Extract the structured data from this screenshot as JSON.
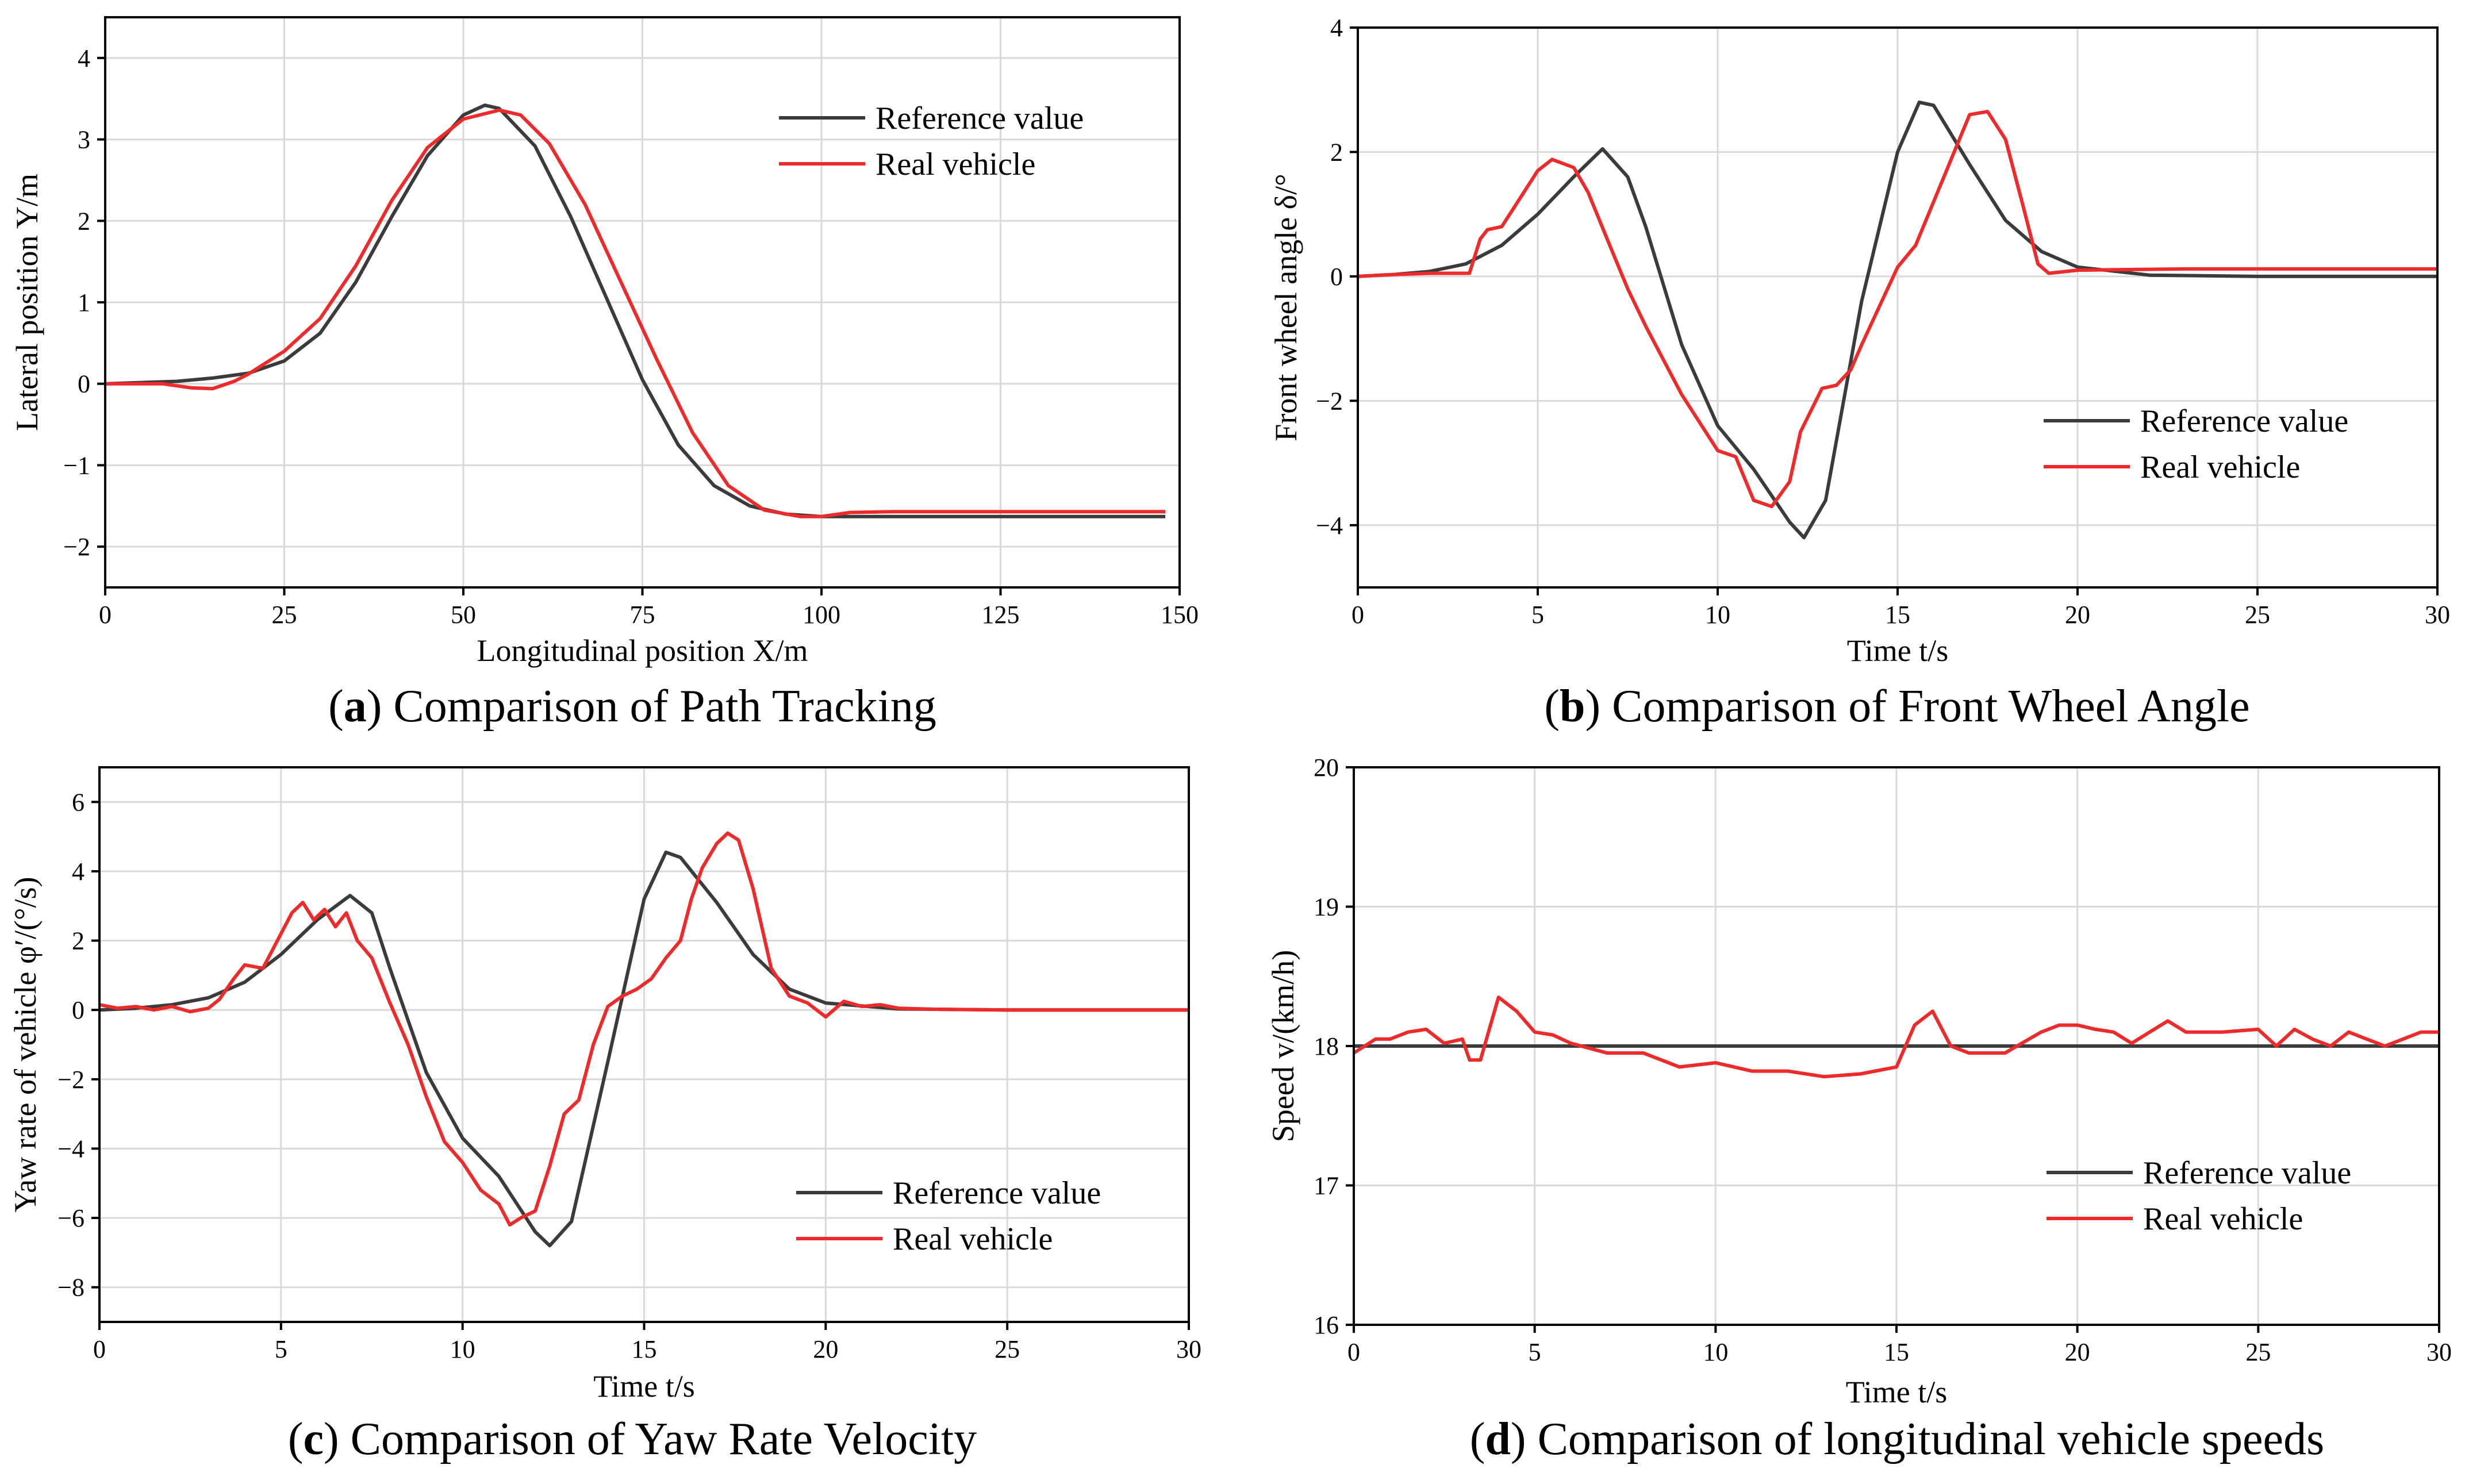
{
  "colors": {
    "reference": "#3b3b3b",
    "real": "#ee2a2a"
  },
  "chart_data": [
    {
      "id": "a",
      "type": "line",
      "caption_letter": "a",
      "caption_text": ") Comparison of Path Tracking",
      "xlabel": "Longitudinal position X/m",
      "ylabel": "Lateral position Y/m",
      "xlim": [
        0,
        150
      ],
      "ylim": [
        -2.5,
        4.5
      ],
      "xticks": [
        0,
        25,
        50,
        75,
        100,
        125,
        150
      ],
      "yticks": [
        -2,
        -1,
        0,
        1,
        2,
        3,
        4
      ],
      "legend": [
        "Reference value",
        "Real vehicle"
      ],
      "legend_position": "top-right",
      "series": [
        {
          "name": "Reference value",
          "x": [
            0,
            10,
            15,
            20,
            25,
            30,
            35,
            40,
            45,
            50,
            53,
            55,
            60,
            65,
            70,
            75,
            80,
            85,
            90,
            95,
            100,
            110,
            120,
            130,
            140,
            148
          ],
          "y": [
            0,
            0.03,
            0.07,
            0.13,
            0.28,
            0.62,
            1.25,
            2.05,
            2.8,
            3.3,
            3.42,
            3.38,
            2.92,
            2.05,
            1.05,
            0.05,
            -0.75,
            -1.25,
            -1.5,
            -1.6,
            -1.63,
            -1.63,
            -1.63,
            -1.63,
            -1.63,
            -1.63
          ]
        },
        {
          "name": "Real vehicle",
          "x": [
            0,
            8,
            12,
            15,
            18,
            20,
            25,
            30,
            35,
            40,
            45,
            50,
            55,
            58,
            62,
            67,
            72,
            77,
            82,
            87,
            92,
            97,
            100,
            104,
            110,
            120,
            130,
            140,
            148
          ],
          "y": [
            0,
            0,
            -0.05,
            -0.06,
            0.03,
            0.12,
            0.4,
            0.8,
            1.45,
            2.25,
            2.9,
            3.25,
            3.36,
            3.3,
            2.95,
            2.2,
            1.25,
            0.3,
            -0.6,
            -1.25,
            -1.55,
            -1.63,
            -1.63,
            -1.58,
            -1.57,
            -1.57,
            -1.57,
            -1.57,
            -1.57
          ]
        }
      ]
    },
    {
      "id": "b",
      "type": "line",
      "caption_letter": "b",
      "caption_text": ") Comparison of Front Wheel Angle",
      "xlabel": "Time t/s",
      "ylabel": "Front wheel angle δ/°",
      "xlim": [
        0,
        30
      ],
      "ylim": [
        -5,
        4
      ],
      "xticks": [
        0,
        5,
        10,
        15,
        20,
        25,
        30
      ],
      "yticks": [
        -4,
        -2,
        0,
        2,
        4
      ],
      "legend": [
        "Reference value",
        "Real vehicle"
      ],
      "legend_position": "bottom-right",
      "series": [
        {
          "name": "Reference value",
          "x": [
            0,
            1,
            2,
            3,
            4,
            5,
            6,
            6.8,
            7.5,
            8,
            9,
            10,
            11,
            12,
            12.4,
            13,
            14,
            15,
            15.6,
            16,
            17,
            18,
            19,
            20,
            22,
            25,
            30
          ],
          "y": [
            0,
            0.03,
            0.08,
            0.2,
            0.5,
            1.0,
            1.6,
            2.05,
            1.6,
            0.8,
            -1.1,
            -2.4,
            -3.1,
            -3.95,
            -4.2,
            -3.6,
            -0.4,
            2.0,
            2.8,
            2.75,
            1.8,
            0.9,
            0.4,
            0.15,
            0.02,
            0,
            0
          ]
        },
        {
          "name": "Real vehicle",
          "x": [
            0,
            1,
            2,
            3.1,
            3.4,
            3.6,
            4,
            5,
            5.4,
            6,
            6.4,
            7,
            7.5,
            8,
            9,
            10,
            10.5,
            11,
            11.5,
            12,
            12.3,
            12.9,
            13.3,
            13.7,
            14,
            15,
            15.5,
            16,
            16.5,
            17,
            17.5,
            18,
            18.5,
            18.9,
            19.2,
            20,
            23,
            25,
            30
          ],
          "y": [
            0,
            0.03,
            0.05,
            0.05,
            0.6,
            0.75,
            0.8,
            1.7,
            1.88,
            1.75,
            1.35,
            0.5,
            -0.2,
            -0.8,
            -1.9,
            -2.8,
            -2.9,
            -3.6,
            -3.7,
            -3.3,
            -2.5,
            -1.8,
            -1.75,
            -1.5,
            -1.1,
            0.15,
            0.5,
            1.2,
            1.9,
            2.6,
            2.65,
            2.2,
            1.1,
            0.2,
            0.05,
            0.1,
            0.12,
            0.12,
            0.12
          ]
        }
      ]
    },
    {
      "id": "c",
      "type": "line",
      "caption_letter": "c",
      "caption_text": ") Comparison of Yaw Rate Velocity",
      "xlabel": "Time t/s",
      "ylabel": "Yaw rate of vehicle φ′/(°/s)",
      "xlim": [
        0,
        30
      ],
      "ylim": [
        -9,
        7
      ],
      "xticks": [
        0,
        5,
        10,
        15,
        20,
        25,
        30
      ],
      "yticks": [
        -8,
        -6,
        -4,
        -2,
        0,
        2,
        4,
        6
      ],
      "legend": [
        "Reference value",
        "Real vehicle"
      ],
      "legend_position": "bottom-right",
      "series": [
        {
          "name": "Reference value",
          "x": [
            0,
            1,
            2,
            3,
            4,
            5,
            6,
            6.9,
            7.5,
            8,
            9,
            10,
            11,
            12,
            12.4,
            13,
            14,
            15,
            15.6,
            16,
            17,
            18,
            19,
            20,
            22,
            25,
            30
          ],
          "y": [
            0,
            0.05,
            0.15,
            0.35,
            0.8,
            1.6,
            2.6,
            3.3,
            2.8,
            1.2,
            -1.8,
            -3.7,
            -4.8,
            -6.4,
            -6.8,
            -6.1,
            -1.5,
            3.2,
            4.55,
            4.4,
            3.1,
            1.6,
            0.6,
            0.2,
            0.03,
            0,
            0
          ]
        },
        {
          "name": "Real vehicle",
          "x": [
            0,
            0.5,
            1,
            1.5,
            2,
            2.5,
            3,
            3.3,
            3.7,
            4,
            4.5,
            5,
            5.3,
            5.6,
            5.9,
            6.2,
            6.5,
            6.8,
            7.1,
            7.5,
            8,
            8.5,
            9,
            9.5,
            10,
            10.5,
            11,
            11.3,
            11.6,
            12,
            12.4,
            12.8,
            13.2,
            13.6,
            14,
            14.4,
            14.8,
            15.2,
            15.6,
            16,
            16.3,
            16.6,
            17,
            17.3,
            17.6,
            18,
            18.5,
            19,
            19.5,
            20,
            20.5,
            21,
            21.5,
            22,
            23,
            25,
            30
          ],
          "y": [
            0.15,
            0.05,
            0.1,
            0.0,
            0.1,
            -0.05,
            0.05,
            0.3,
            0.9,
            1.3,
            1.2,
            2.2,
            2.8,
            3.1,
            2.6,
            2.9,
            2.4,
            2.8,
            2.0,
            1.5,
            0.2,
            -1.0,
            -2.5,
            -3.8,
            -4.4,
            -5.2,
            -5.6,
            -6.2,
            -6.0,
            -5.8,
            -4.5,
            -3.0,
            -2.6,
            -1.0,
            0.1,
            0.4,
            0.6,
            0.9,
            1.5,
            2.0,
            3.2,
            4.1,
            4.8,
            5.1,
            4.9,
            3.5,
            1.2,
            0.4,
            0.2,
            -0.2,
            0.25,
            0.1,
            0.15,
            0.05,
            0.02,
            0,
            0
          ]
        }
      ]
    },
    {
      "id": "d",
      "type": "line",
      "caption_letter": "d",
      "caption_text": ") Comparison of longitudinal vehicle speeds",
      "xlabel": "Time t/s",
      "ylabel": "Speed v/(km/h)",
      "xlim": [
        0,
        30
      ],
      "ylim": [
        16,
        20
      ],
      "xticks": [
        0,
        5,
        10,
        15,
        20,
        25,
        30
      ],
      "yticks": [
        16,
        17,
        18,
        19,
        20
      ],
      "legend": [
        "Reference value",
        "Real vehicle"
      ],
      "legend_position": "bottom-right",
      "series": [
        {
          "name": "Reference value",
          "x": [
            0,
            30
          ],
          "y": [
            18,
            18
          ]
        },
        {
          "name": "Real vehicle",
          "x": [
            0,
            0.3,
            0.6,
            1,
            1.5,
            2,
            2.5,
            3,
            3.2,
            3.5,
            4,
            4.5,
            5,
            5.5,
            6,
            7,
            8,
            9,
            10,
            11,
            12,
            13,
            14,
            15,
            15.5,
            16,
            16.5,
            17,
            18,
            19,
            19.5,
            20,
            20.5,
            21,
            21.5,
            22,
            22.5,
            23,
            24,
            25,
            25.5,
            26,
            26.5,
            27,
            27.5,
            28,
            28.5,
            29,
            29.5,
            30
          ],
          "y": [
            17.95,
            18.0,
            18.05,
            18.05,
            18.1,
            18.12,
            18.02,
            18.05,
            17.9,
            17.9,
            18.35,
            18.25,
            18.1,
            18.08,
            18.02,
            17.95,
            17.95,
            17.85,
            17.88,
            17.82,
            17.82,
            17.78,
            17.8,
            17.85,
            18.15,
            18.25,
            18.0,
            17.95,
            17.95,
            18.1,
            18.15,
            18.15,
            18.12,
            18.1,
            18.02,
            18.1,
            18.18,
            18.1,
            18.1,
            18.12,
            18.0,
            18.12,
            18.05,
            18.0,
            18.1,
            18.05,
            18.0,
            18.05,
            18.1,
            18.1
          ]
        }
      ]
    }
  ]
}
